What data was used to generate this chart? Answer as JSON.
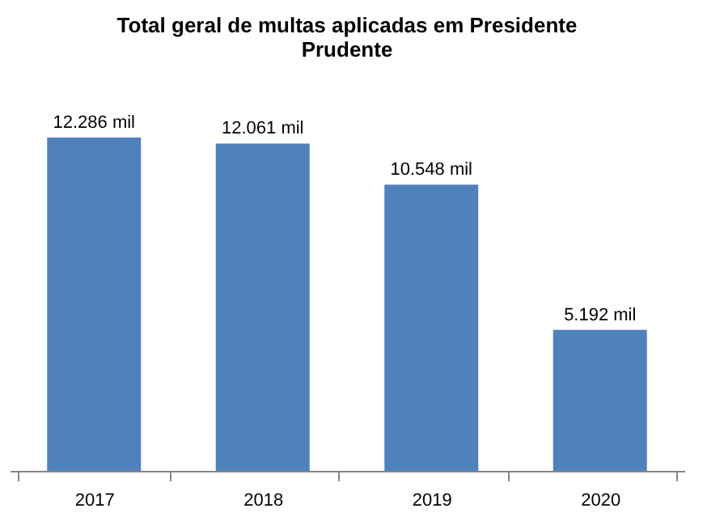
{
  "chart_data": {
    "type": "bar",
    "title": "Total geral de multas aplicadas  em Presidente Prudente",
    "categories": [
      "2017",
      "2018",
      "2019",
      "2020"
    ],
    "values": [
      12286,
      12061,
      10548,
      5192
    ],
    "value_labels": [
      "12.286 mil",
      "12.061 mil",
      "10.548 mil",
      "5.192 mil"
    ],
    "color": "#4f81bd",
    "grid": false,
    "tick_labels": "x"
  }
}
